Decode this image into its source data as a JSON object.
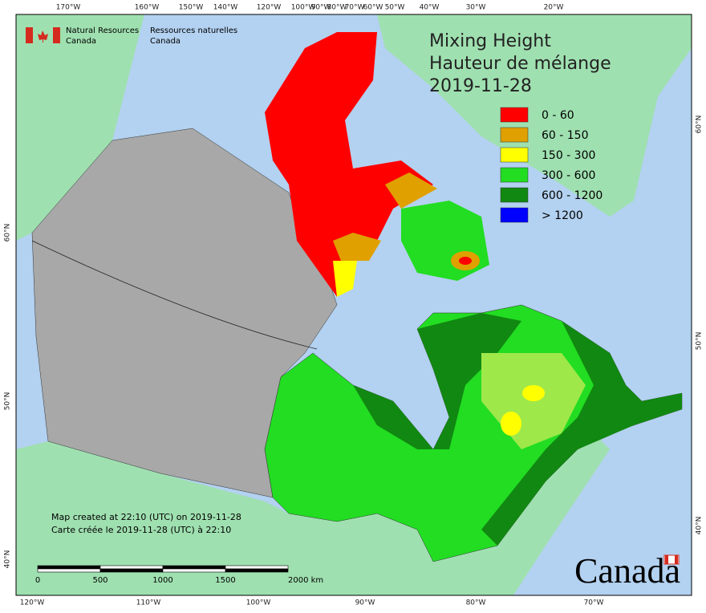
{
  "header": {
    "title": "Mixing Height",
    "title_fr": "Hauteur de mélange",
    "date": "2019-11-28"
  },
  "logo": {
    "en_line1": "Natural Resources",
    "en_line2": "Canada",
    "fr_line1": "Ressources naturelles",
    "fr_line2": "Canada",
    "wordmark": "Canada"
  },
  "legend": [
    {
      "label": "0 - 60",
      "color": "#ff0000"
    },
    {
      "label": "60 - 150",
      "color": "#e0a000"
    },
    {
      "label": "150 - 300",
      "color": "#ffff00"
    },
    {
      "label": "300 - 600",
      "color": "#22dd22"
    },
    {
      "label": "600 - 1200",
      "color": "#118811"
    },
    {
      "label": "> 1200",
      "color": "#0000ff"
    }
  ],
  "notes": [
    "Map created at 22:10 (UTC) on 2019-11-28",
    "Carte créée le 2019-11-28 (UTC) à 22:10"
  ],
  "scale": {
    "labels": [
      "0",
      "500",
      "1000",
      "1500",
      "2000 km"
    ]
  },
  "graticule": {
    "top": [
      "170°W",
      "160°W",
      "150°W",
      "140°W",
      "120°W",
      "100°W",
      "90°W",
      "80°W",
      "70°W",
      "60°W",
      "50°W",
      "40°W",
      "30°W",
      "20°W"
    ],
    "bottom": [
      "120°W",
      "110°W",
      "100°W",
      "90°W",
      "80°W",
      "70°W"
    ],
    "left": [
      "60°N",
      "50°N",
      "40°N"
    ],
    "right": [
      "60°N",
      "50°N",
      "40°N"
    ]
  }
}
